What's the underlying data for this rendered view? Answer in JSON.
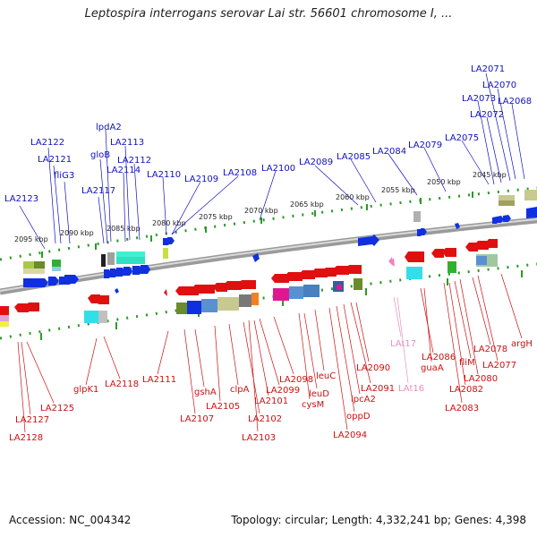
{
  "title": "Leptospira interrogans serovar Lai str. 56601 chromosome I, ...",
  "footer": {
    "accession": "Accession: NC_004342",
    "info": "Topology: circular; Length: 4,332,241 bp; Genes: 4,398"
  },
  "kbp_labels": [
    "2095 kbp",
    "2090 kbp",
    "2085 kbp",
    "2080 kbp",
    "2075 kbp",
    "2070 kbp",
    "2065 kbp",
    "2060 kbp",
    "2055 kbp",
    "2050 kbp",
    "2045 kbp"
  ],
  "top_genes": [
    "LA2123",
    "LA2122",
    "LA2121",
    "fliG3",
    "LA2117",
    "lpdA2",
    "gloB",
    "LA2113",
    "LA2114",
    "LA2112",
    "LA2110",
    "LA2109",
    "LA2108",
    "LA2100",
    "LA2089",
    "LA2085",
    "LA2084",
    "LA2079",
    "LA2075",
    "LA2073",
    "LA2072",
    "LA2071",
    "LA2070",
    "LA2068"
  ],
  "bottom_genes": [
    "LA2128",
    "LA2127",
    "LA2125",
    "glpK1",
    "LA2118",
    "LA2111",
    "LA2107",
    "gshA",
    "LA2105",
    "clpA",
    "LA2102",
    "LA2103",
    "LA2101",
    "LA2099",
    "LA2098",
    "leuD",
    "cysM",
    "leuC",
    "LA2094",
    "oppD",
    "lpcA2",
    "LA2091",
    "LA2090",
    "LAt17",
    "LAt16",
    "LA2086",
    "guaA",
    "LA2083",
    "LA2082",
    "fliM",
    "LA2080",
    "LA2078",
    "LA2077",
    "argH"
  ],
  "colors": {
    "forward_gene": "#1030e0",
    "reverse_gene": "#e01010",
    "trna_gene": "#f080c0",
    "forward_label": "#1010c0",
    "reverse_label": "#cc1010",
    "trna_label": "#e890c0",
    "backbone": "#888888",
    "tick": "#2a9a2a"
  }
}
